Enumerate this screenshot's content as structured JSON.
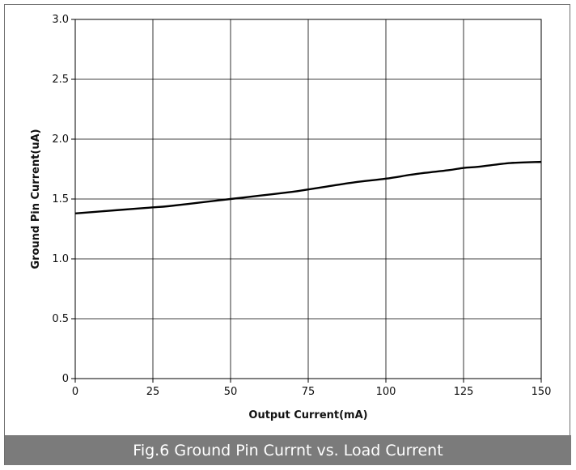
{
  "chart_data": {
    "type": "line",
    "title": "",
    "xlabel": "Output Current(mA)",
    "ylabel": "Ground Pin Current(uA)",
    "xlim": [
      0,
      150
    ],
    "ylim": [
      0,
      3.0
    ],
    "xticks": [
      0,
      25,
      50,
      75,
      100,
      125,
      150
    ],
    "xtick_labels": [
      "0",
      "25",
      "50",
      "75",
      "100",
      "125",
      "150"
    ],
    "yticks": [
      0,
      0.5,
      1.0,
      1.5,
      2.0,
      2.5,
      3.0
    ],
    "ytick_labels": [
      "0",
      "0.5",
      "1.0",
      "1.5",
      "2.0",
      "2.5",
      "3.0"
    ],
    "grid": true,
    "legend": "none",
    "series": [
      {
        "x": [
          0,
          10,
          20,
          25,
          30,
          40,
          50,
          60,
          70,
          75,
          80,
          90,
          100,
          110,
          120,
          125,
          130,
          140,
          150
        ],
        "y": [
          1.38,
          1.4,
          1.42,
          1.43,
          1.44,
          1.47,
          1.5,
          1.53,
          1.56,
          1.58,
          1.6,
          1.64,
          1.67,
          1.71,
          1.74,
          1.76,
          1.77,
          1.8,
          1.81
        ],
        "color": "#000000"
      }
    ]
  },
  "caption": "Fig.6 Ground Pin Currnt vs. Load Current"
}
